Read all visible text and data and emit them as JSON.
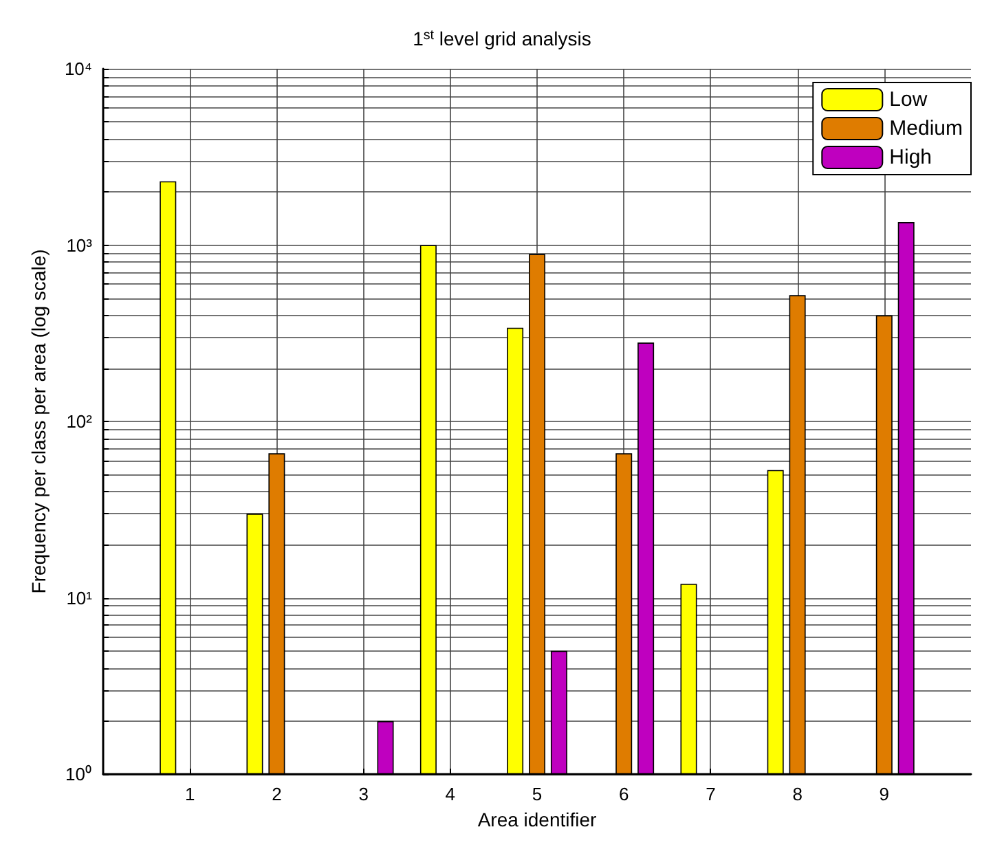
{
  "chart_data": {
    "type": "bar",
    "title": "1$^{st}$ level grid analysis",
    "xlabel": "Area identifier",
    "ylabel": "Frequency per class per area (log scale)",
    "x": [
      1,
      2,
      3,
      4,
      5,
      6,
      7,
      8,
      9
    ],
    "xlim": [
      0,
      10
    ],
    "xticks": [
      1,
      2,
      3,
      4,
      5,
      6,
      7,
      8,
      9
    ],
    "ylim": [
      1,
      10000
    ],
    "yticks": [
      {
        "value": 1,
        "label": "10⁰"
      },
      {
        "value": 2,
        "label": null
      },
      {
        "value": 3,
        "label": null
      },
      {
        "value": 4,
        "label": null
      },
      {
        "value": 5,
        "label": null
      },
      {
        "value": 6,
        "label": null
      },
      {
        "value": 7,
        "label": null
      },
      {
        "value": 8,
        "label": null
      },
      {
        "value": 9,
        "label": null
      },
      {
        "value": 10,
        "label": "10¹"
      },
      {
        "value": 20,
        "label": null
      },
      {
        "value": 30,
        "label": null
      },
      {
        "value": 40,
        "label": null
      },
      {
        "value": 50,
        "label": null
      },
      {
        "value": 60,
        "label": null
      },
      {
        "value": 70,
        "label": null
      },
      {
        "value": 80,
        "label": null
      },
      {
        "value": 90,
        "label": null
      },
      {
        "value": 100,
        "label": "10²"
      },
      {
        "value": 200,
        "label": null
      },
      {
        "value": 300,
        "label": null
      },
      {
        "value": 400,
        "label": null
      },
      {
        "value": 500,
        "label": null
      },
      {
        "value": 600,
        "label": null
      },
      {
        "value": 700,
        "label": null
      },
      {
        "value": 800,
        "label": null
      },
      {
        "value": 900,
        "label": null
      },
      {
        "value": 1000,
        "label": "10³"
      },
      {
        "value": 2000,
        "label": null
      },
      {
        "value": 3000,
        "label": null
      },
      {
        "value": 4000,
        "label": null
      },
      {
        "value": 5000,
        "label": null
      },
      {
        "value": 6000,
        "label": null
      },
      {
        "value": 7000,
        "label": null
      },
      {
        "value": 8000,
        "label": null
      },
      {
        "value": 9000,
        "label": null
      },
      {
        "value": 10000,
        "label": "10⁴"
      }
    ],
    "log": true,
    "grid": true,
    "legend": "top right",
    "series": [
      {
        "name": "Low",
        "color": "#ffff00",
        "values": [
          2300,
          30,
          null,
          1000,
          340,
          null,
          12,
          53,
          null
        ]
      },
      {
        "name": "Medium",
        "color": "#df7c00",
        "values": [
          null,
          66,
          null,
          null,
          890,
          66,
          null,
          520,
          400
        ]
      },
      {
        "name": "High",
        "color": "#bf00bf",
        "values": [
          null,
          null,
          2,
          null,
          5,
          280,
          null,
          null,
          1350
        ]
      }
    ]
  }
}
